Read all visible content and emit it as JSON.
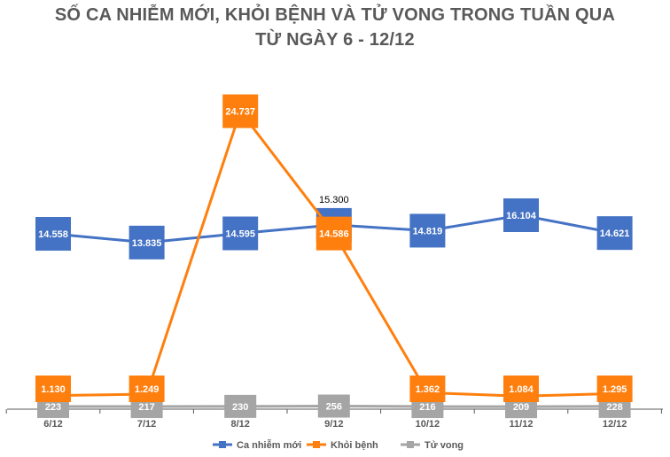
{
  "chart_data": {
    "type": "line",
    "title": "SỐ CA NHIỄM MỚI, KHỎI BỆNH VÀ TỬ VONG TRONG TUẦN QUA",
    "subtitle": "TỪ NGÀY 6 - 12/12",
    "categories": [
      "6/12",
      "7/12",
      "8/12",
      "9/12",
      "10/12",
      "11/12",
      "12/12"
    ],
    "series": [
      {
        "name": "Ca nhiễm mới",
        "color": "#4472C4",
        "values": [
          14558,
          13835,
          14595,
          15300,
          14819,
          16104,
          14621
        ],
        "labels": [
          "14.558",
          "13.835",
          "14.595",
          "15.300",
          "14.819",
          "16.104",
          "14.621"
        ]
      },
      {
        "name": "Khỏi bệnh",
        "color": "#FF7F0E",
        "values": [
          1130,
          1249,
          24737,
          14586,
          1362,
          1084,
          1295
        ],
        "labels": [
          "1.130",
          "1.249",
          "24.737",
          "14.586",
          "1.362",
          "1.084",
          "1.295"
        ]
      },
      {
        "name": "Tử vong",
        "color": "#A5A5A5",
        "values": [
          223,
          217,
          230,
          256,
          216,
          209,
          228
        ],
        "labels": [
          "223",
          "217",
          "230",
          "256",
          "216",
          "209",
          "228"
        ]
      }
    ],
    "legend_position": "bottom",
    "grid": false
  }
}
